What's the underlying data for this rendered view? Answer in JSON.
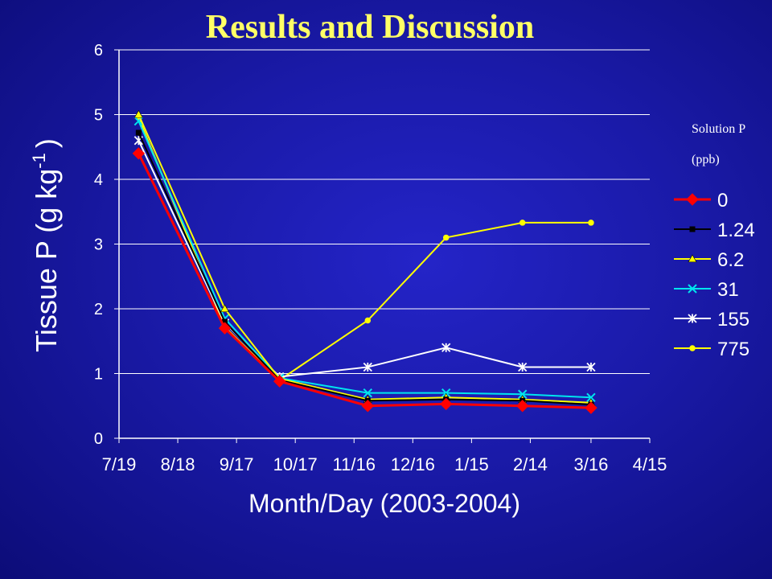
{
  "slide": {
    "title": "Results and Discussion"
  },
  "legend": {
    "title_line1": "Solution P",
    "title_line2": "(ppb)"
  },
  "chart_data": {
    "type": "line",
    "xlabel": "Month/Day (2003-2004)",
    "ylabel_main": "Tissue P (g kg",
    "ylabel_sup": "-1",
    "ylabel_end": ")",
    "x_ticks": [
      "7/19",
      "8/18",
      "9/17",
      "10/17",
      "11/16",
      "12/16",
      "1/15",
      "2/14",
      "3/16",
      "4/15"
    ],
    "xlim": [
      "7/19/2003",
      "4/15/2004"
    ],
    "ylim": [
      0,
      6
    ],
    "y_ticks": [
      0,
      1,
      2,
      3,
      4,
      5,
      6
    ],
    "grid": "horizontal",
    "legend_position": "right",
    "x": [
      "7/29/2003",
      "9/11/2003",
      "10/9/2003",
      "11/23/2003",
      "1/2/2004",
      "2/10/2004",
      "3/16/2004"
    ],
    "series": [
      {
        "name": "0",
        "color": "#ff0000",
        "marker": "diamond",
        "values": [
          4.4,
          1.7,
          0.88,
          0.5,
          0.53,
          0.5,
          0.47
        ]
      },
      {
        "name": "1.24",
        "color": "#000000",
        "marker": "square",
        "values": [
          4.72,
          1.8,
          0.9,
          0.58,
          0.6,
          0.58,
          0.52
        ]
      },
      {
        "name": "6.2",
        "color": "#ffff00",
        "marker": "triangle",
        "values": [
          5.0,
          2.0,
          0.92,
          0.6,
          0.63,
          0.6,
          0.55
        ]
      },
      {
        "name": "31",
        "color": "#00e5ee",
        "marker": "x",
        "values": [
          4.9,
          1.85,
          0.93,
          0.7,
          0.7,
          0.68,
          0.63
        ]
      },
      {
        "name": "155",
        "color": "#ffffff",
        "marker": "star",
        "values": [
          4.6,
          1.78,
          0.95,
          1.1,
          1.4,
          1.1,
          1.1
        ]
      },
      {
        "name": "775",
        "color": "#ffff00",
        "marker": "circle",
        "values": [
          4.95,
          1.72,
          0.9,
          1.82,
          3.1,
          3.33,
          3.33
        ]
      }
    ]
  }
}
